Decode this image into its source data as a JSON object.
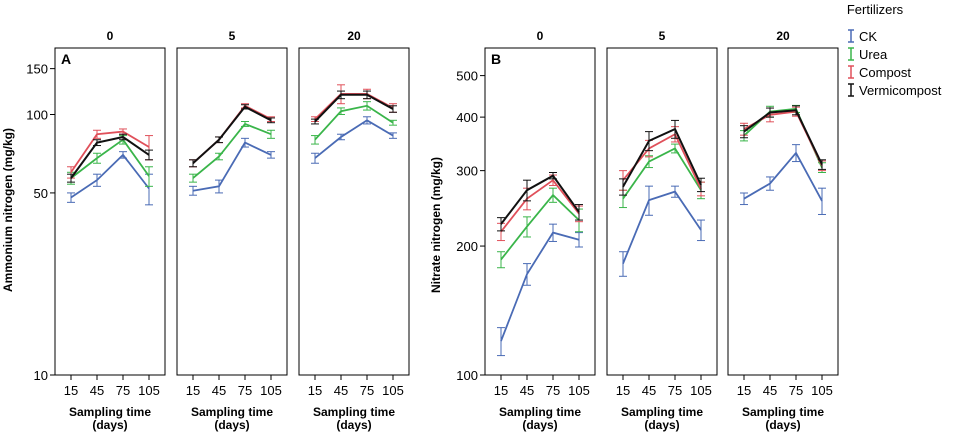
{
  "chart_data": {
    "type": "line",
    "x": [
      15,
      45,
      75,
      105
    ],
    "xlabel_line1": "Sampling time",
    "xlabel_line2": "(days)",
    "legend": {
      "title": "Fertilizers",
      "entries": [
        {
          "name": "CK",
          "color": "#4a6bb5"
        },
        {
          "name": "Urea",
          "color": "#3ab54a"
        },
        {
          "name": "Compost",
          "color": "#e0505a"
        },
        {
          "name": "Vermicompost",
          "color": "#111111"
        }
      ]
    },
    "plots": [
      {
        "letter": "A",
        "ylabel": "Ammonium nitrogen (mg/kg)",
        "yscale": "log",
        "ylim": [
          10,
          180
        ],
        "yticks": [
          10,
          50,
          100,
          150
        ],
        "panels": [
          {
            "title": "0",
            "series": [
              {
                "name": "CK",
                "values": [
                  48,
                  56,
                  70,
                  52
                ],
                "err": [
                  2,
                  3,
                  2,
                  7
                ]
              },
              {
                "name": "Urea",
                "values": [
                  57,
                  68,
                  80,
                  58
                ],
                "err": [
                  3,
                  3,
                  3,
                  5
                ]
              },
              {
                "name": "Compost",
                "values": [
                  60,
                  84,
                  86,
                  75
                ],
                "err": [
                  3,
                  3,
                  2,
                  8
                ]
              },
              {
                "name": "Vermicompost",
                "values": [
                  57,
                  78,
                  82,
                  70
                ],
                "err": [
                  2,
                  2,
                  2,
                  3
                ]
              }
            ]
          },
          {
            "title": "5",
            "series": [
              {
                "name": "CK",
                "values": [
                  51,
                  53,
                  78,
                  70
                ],
                "err": [
                  2,
                  3,
                  3,
                  2
                ]
              },
              {
                "name": "Urea",
                "values": [
                  57,
                  69,
                  92,
                  84
                ],
                "err": [
                  2,
                  2,
                  2,
                  3
                ]
              },
              {
                "name": "Compost",
                "values": [
                  65,
                  80,
                  108,
                  96
                ],
                "err": [
                  2,
                  2,
                  2,
                  2
                ]
              },
              {
                "name": "Vermicompost",
                "values": [
                  65,
                  80,
                  107,
                  95
                ],
                "err": [
                  2,
                  2,
                  2,
                  2
                ]
              }
            ]
          },
          {
            "title": "20",
            "series": [
              {
                "name": "CK",
                "values": [
                  68,
                  82,
                  95,
                  83
                ],
                "err": [
                  3,
                  2,
                  3,
                  2
                ]
              },
              {
                "name": "Urea",
                "values": [
                  80,
                  103,
                  108,
                  93
                ],
                "err": [
                  3,
                  3,
                  4,
                  2
                ]
              },
              {
                "name": "Compost",
                "values": [
                  96,
                  120,
                  120,
                  106
                ],
                "err": [
                  2,
                  10,
                  5,
                  4
                ]
              },
              {
                "name": "Vermicompost",
                "values": [
                  94,
                  119,
                  119,
                  105
                ],
                "err": [
                  2,
                  4,
                  4,
                  3
                ]
              }
            ]
          }
        ]
      },
      {
        "letter": "B",
        "ylabel": "Nitrate nitrogen (mg/kg)",
        "yscale": "log",
        "ylim": [
          100,
          580
        ],
        "yticks": [
          100,
          200,
          300,
          400,
          500
        ],
        "panels": [
          {
            "title": "0",
            "series": [
              {
                "name": "CK",
                "values": [
                  120,
                  172,
                  215,
                  207
                ],
                "err": [
                  9,
                  10,
                  10,
                  8
                ]
              },
              {
                "name": "Urea",
                "values": [
                  186,
                  222,
                  263,
                  230
                ],
                "err": [
                  8,
                  12,
                  10,
                  14
                ]
              },
              {
                "name": "Compost",
                "values": [
                  216,
                  258,
                  285,
                  238
                ],
                "err": [
                  10,
                  15,
                  8,
                  10
                ]
              },
              {
                "name": "Vermicompost",
                "values": [
                  225,
                  270,
                  292,
                  240
                ],
                "err": [
                  8,
                  15,
                  5,
                  10
                ]
              }
            ]
          },
          {
            "title": "5",
            "series": [
              {
                "name": "CK",
                "values": [
                  182,
                  256,
                  268,
                  218
                ],
                "err": [
                  12,
                  20,
                  8,
                  12
                ]
              },
              {
                "name": "Urea",
                "values": [
                  258,
                  315,
                  338,
                  270
                ],
                "err": [
                  12,
                  10,
                  8,
                  12
                ]
              },
              {
                "name": "Compost",
                "values": [
                  285,
                  338,
                  365,
                  272
                ],
                "err": [
                  15,
                  15,
                  15,
                  10
                ]
              },
              {
                "name": "Vermicompost",
                "values": [
                  275,
                  352,
                  375,
                  278
                ],
                "err": [
                  12,
                  18,
                  18,
                  10
                ]
              }
            ]
          },
          {
            "title": "20",
            "series": [
              {
                "name": "CK",
                "values": [
                  258,
                  280,
                  330,
                  255
                ],
                "err": [
                  8,
                  10,
                  15,
                  18
                ]
              },
              {
                "name": "Urea",
                "values": [
                  362,
                  412,
                  418,
                  305
                ],
                "err": [
                  10,
                  12,
                  8,
                  8
                ]
              },
              {
                "name": "Compost",
                "values": [
                  375,
                  405,
                  412,
                  308
                ],
                "err": [
                  12,
                  15,
                  10,
                  8
                ]
              },
              {
                "name": "Vermicompost",
                "values": [
                  370,
                  410,
                  415,
                  310
                ],
                "err": [
                  12,
                  10,
                  10,
                  8
                ]
              }
            ]
          }
        ]
      }
    ]
  }
}
